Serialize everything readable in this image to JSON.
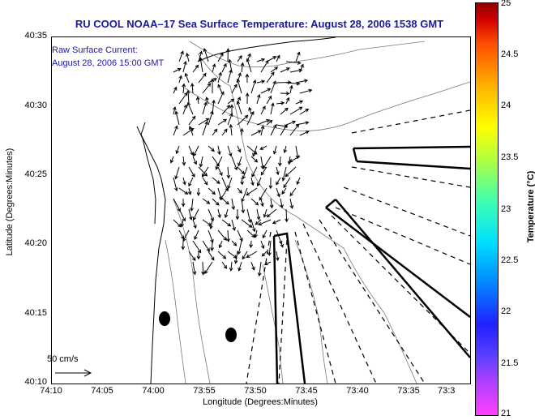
{
  "title": "RU COOL  NOAA–17  Sea Surface Temperature:  August 28, 2006 1538 GMT",
  "annotation": {
    "line1": "Raw Surface Current:",
    "line2": "August 28, 2006 15:00 GMT"
  },
  "axes": {
    "ylabel": "Latitude (Degrees:Minutes)",
    "xlabel": "Longitude (Degrees:Minutes)",
    "yticks": [
      "40:35",
      "40:30",
      "40:25",
      "40:20",
      "40:15",
      "40:10"
    ],
    "xticks": [
      "74:10",
      "74:05",
      "74:00",
      "73:55",
      "73:50",
      "73:45",
      "73:40",
      "73:35",
      "73:3"
    ]
  },
  "colorbar": {
    "label": "Temperature (°C)",
    "ticks": [
      "25",
      "24.5",
      "24",
      "23.5",
      "23",
      "22.5",
      "22",
      "21.5",
      "21"
    ],
    "range": [
      21,
      25
    ]
  },
  "scale": {
    "label": "50 cm/s"
  },
  "icons": {
    "current-vector": "arrow",
    "scale-arrow": "arrow"
  }
}
